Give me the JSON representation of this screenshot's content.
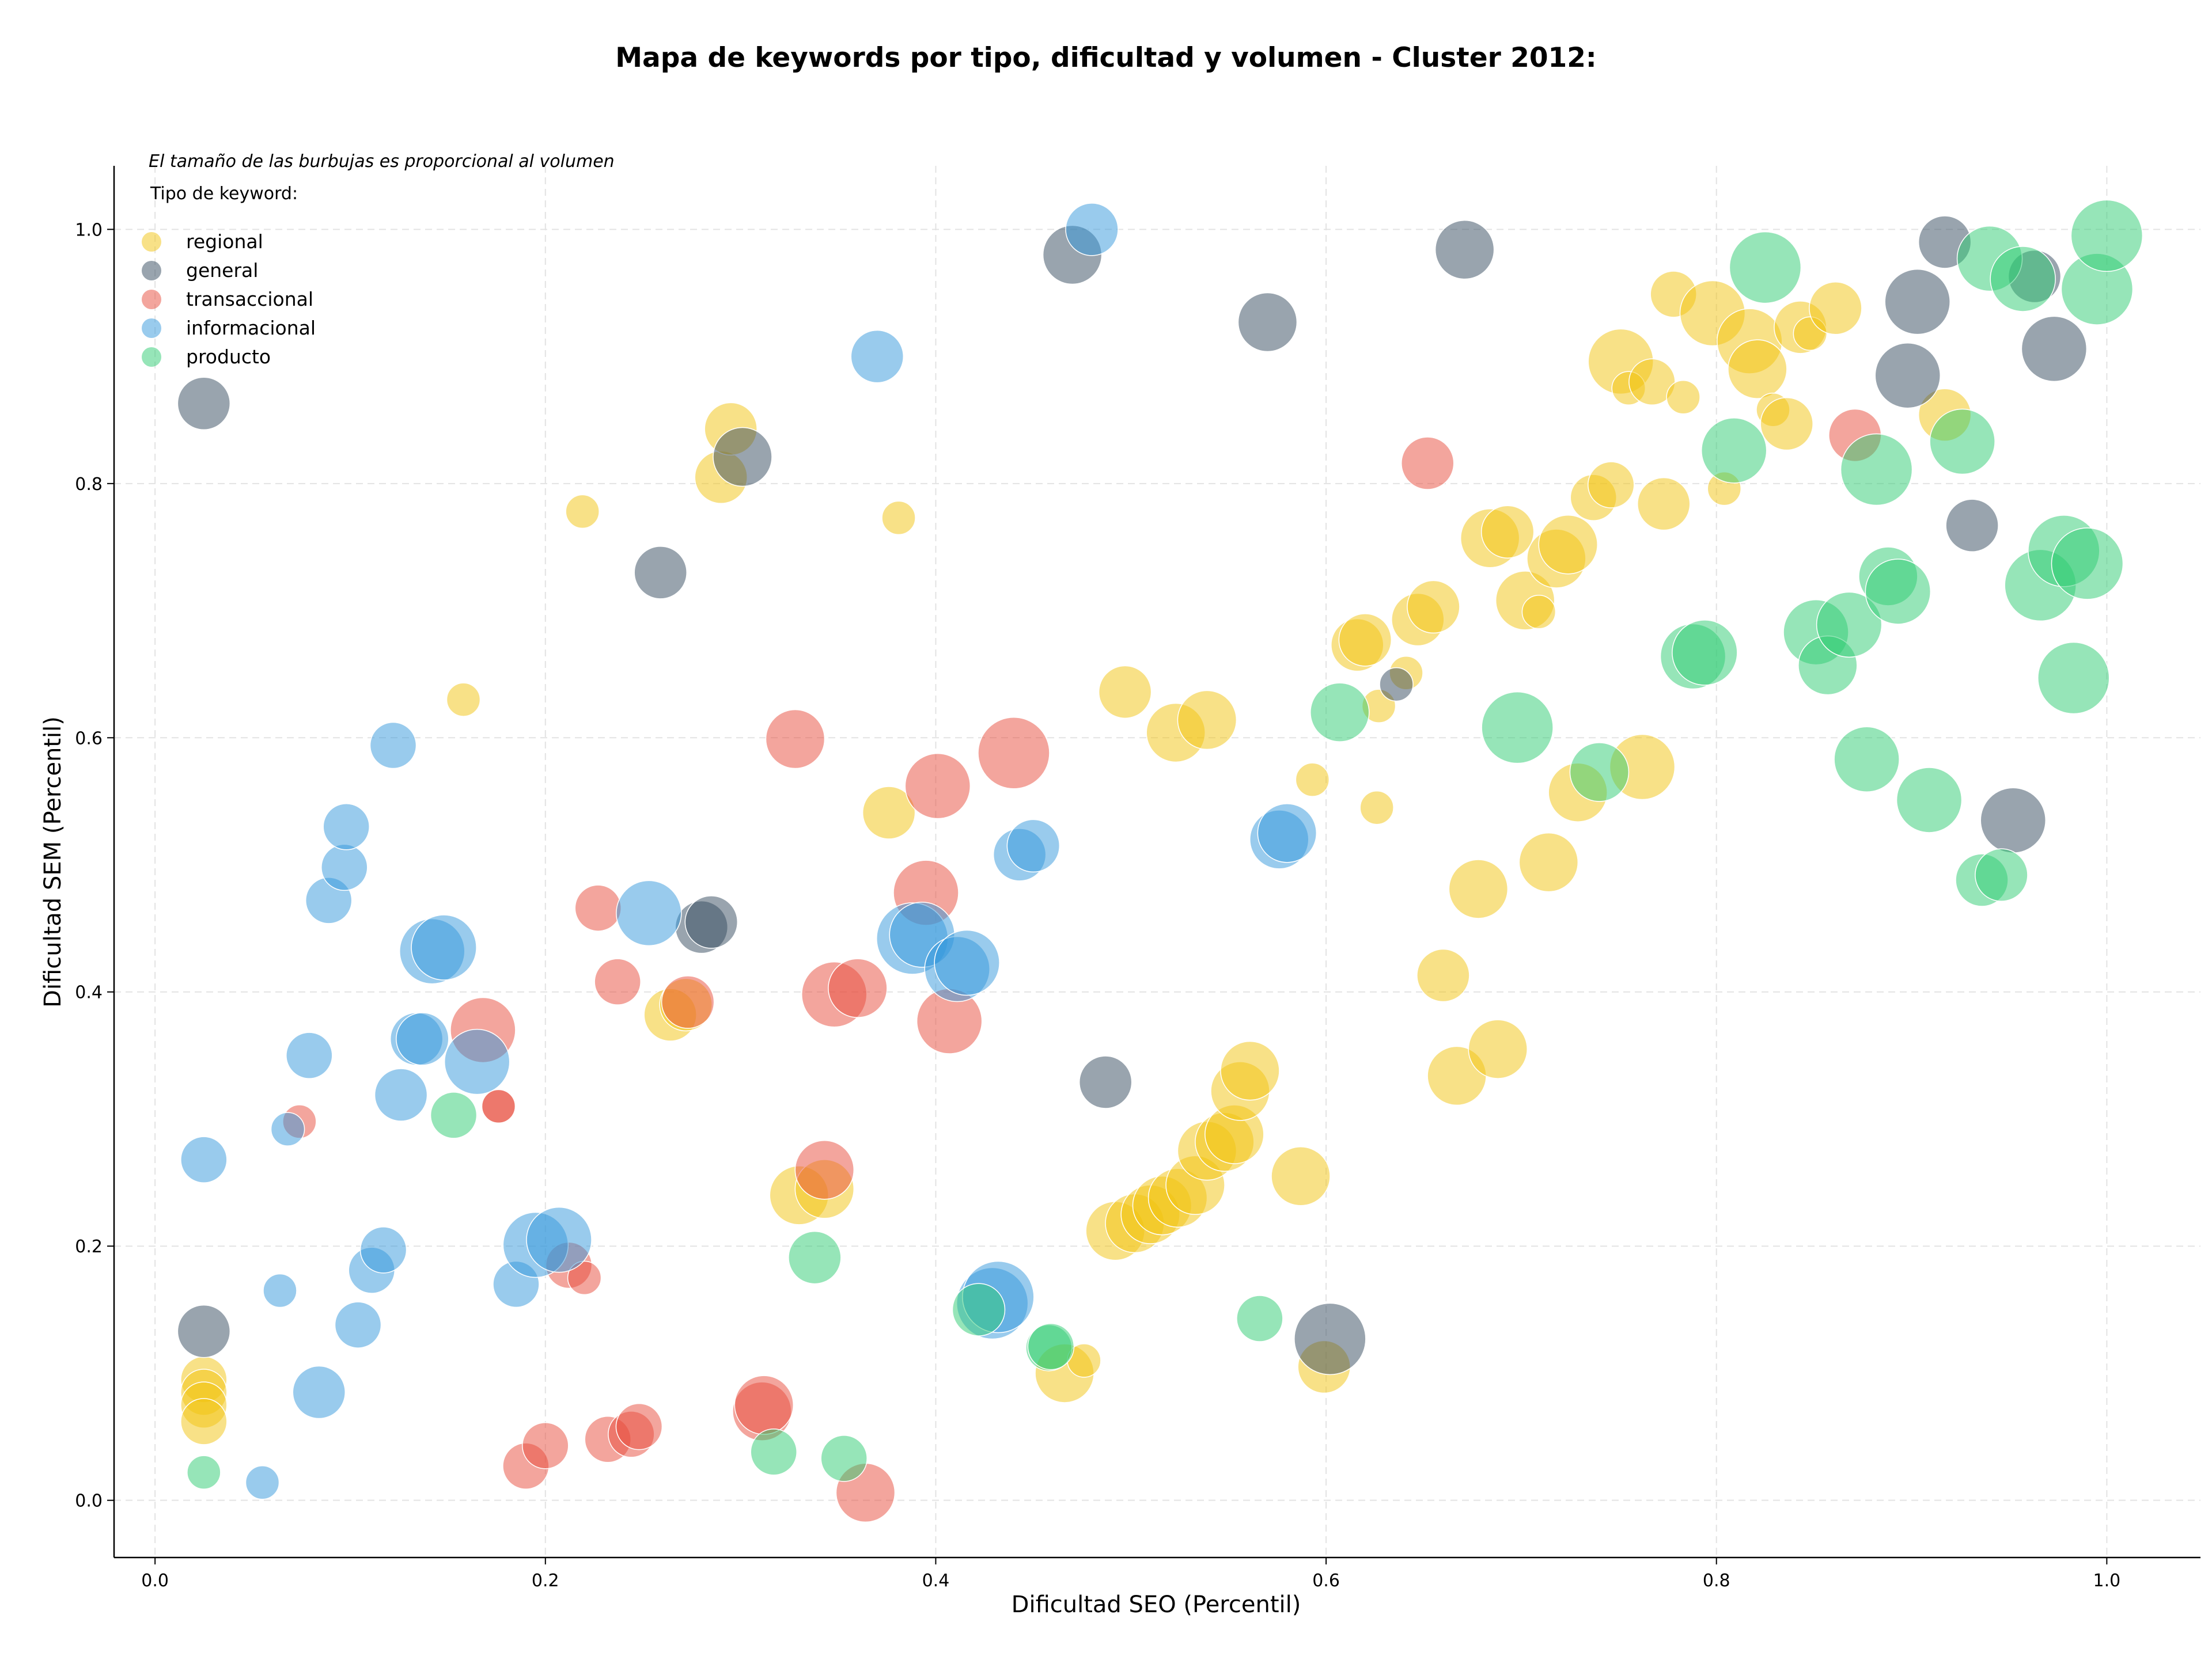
{
  "colors": {
    "regional": "#f1c40f",
    "general": "#34495e",
    "transaccional": "#e74c3c",
    "informacional": "#3498db",
    "producto": "#2ecc71"
  },
  "chart_data": {
    "type": "scatter",
    "title": "Mapa de keywords por tipo, dificultad y volumen - Cluster 2012:",
    "subtitle": "El tamaño de las burbujas es proporcional al volumen",
    "xlabel": "Dificultad SEO (Percentil)",
    "ylabel": "Dificultad SEM (Percentil)",
    "xlim": [
      -0.021,
      1.048
    ],
    "ylim": [
      -0.045,
      1.05
    ],
    "xticks": [
      "0.0",
      "0.2",
      "0.4",
      "0.6",
      "0.8",
      "1.0"
    ],
    "yticks": [
      "0.0",
      "0.2",
      "0.4",
      "0.6",
      "0.8",
      "1.0"
    ],
    "grid": true,
    "legend_title": "Tipo de keyword:",
    "legend_position": "top-left",
    "size_encoding": "volumen (relative 1-5)",
    "series": [
      {
        "name": "regional",
        "points": [
          [
            0.025,
            0.095,
            2
          ],
          [
            0.025,
            0.085,
            2
          ],
          [
            0.025,
            0.075,
            2
          ],
          [
            0.025,
            0.062,
            2
          ],
          [
            0.158,
            0.63,
            1
          ],
          [
            0.219,
            0.778,
            1
          ],
          [
            0.264,
            0.382,
            2.5
          ],
          [
            0.272,
            0.39,
            2.5
          ],
          [
            0.29,
            0.805,
            2.5
          ],
          [
            0.295,
            0.843,
            2.5
          ],
          [
            0.33,
            0.24,
            3
          ],
          [
            0.343,
            0.245,
            3
          ],
          [
            0.376,
            0.541,
            2.5
          ],
          [
            0.381,
            0.773,
            1
          ],
          [
            0.466,
            0.1,
            3
          ],
          [
            0.476,
            0.11,
            1
          ],
          [
            0.492,
            0.212,
            3
          ],
          [
            0.502,
            0.218,
            3
          ],
          [
            0.51,
            0.225,
            3
          ],
          [
            0.516,
            0.232,
            3
          ],
          [
            0.524,
            0.238,
            3
          ],
          [
            0.533,
            0.248,
            3
          ],
          [
            0.539,
            0.275,
            3
          ],
          [
            0.548,
            0.282,
            3
          ],
          [
            0.553,
            0.288,
            3
          ],
          [
            0.556,
            0.322,
            3
          ],
          [
            0.561,
            0.338,
            3
          ],
          [
            0.497,
            0.636,
            2.5
          ],
          [
            0.523,
            0.604,
            3
          ],
          [
            0.539,
            0.614,
            3
          ],
          [
            0.587,
            0.255,
            3
          ],
          [
            0.593,
            0.567,
            1
          ],
          [
            0.599,
            0.105,
            2.5
          ],
          [
            0.626,
            0.545,
            1
          ],
          [
            0.627,
            0.625,
            1
          ],
          [
            0.616,
            0.673,
            2.5
          ],
          [
            0.62,
            0.677,
            2.5
          ],
          [
            0.641,
            0.651,
            1
          ],
          [
            0.647,
            0.693,
            2.5
          ],
          [
            0.655,
            0.703,
            2.5
          ],
          [
            0.66,
            0.413,
            2.5
          ],
          [
            0.667,
            0.334,
            3
          ],
          [
            0.678,
            0.481,
            3
          ],
          [
            0.684,
            0.757,
            3
          ],
          [
            0.688,
            0.355,
            3
          ],
          [
            0.693,
            0.762,
            2.5
          ],
          [
            0.702,
            0.708,
            3
          ],
          [
            0.709,
            0.699,
            1
          ],
          [
            0.714,
            0.502,
            3
          ],
          [
            0.718,
            0.741,
            3
          ],
          [
            0.724,
            0.752,
            3
          ],
          [
            0.729,
            0.557,
            3
          ],
          [
            0.737,
            0.789,
            2
          ],
          [
            0.746,
            0.799,
            2
          ],
          [
            0.751,
            0.896,
            3.5
          ],
          [
            0.755,
            0.875,
            1
          ],
          [
            0.762,
            0.577,
            3.5
          ],
          [
            0.767,
            0.88,
            2
          ],
          [
            0.773,
            0.784,
            2.5
          ],
          [
            0.778,
            0.949,
            2
          ],
          [
            0.783,
            0.868,
            1
          ],
          [
            0.798,
            0.934,
            3.5
          ],
          [
            0.804,
            0.796,
            1
          ],
          [
            0.817,
            0.912,
            3.5
          ],
          [
            0.821,
            0.89,
            3
          ],
          [
            0.829,
            0.858,
            1
          ],
          [
            0.836,
            0.847,
            2.5
          ],
          [
            0.843,
            0.923,
            2.5
          ],
          [
            0.848,
            0.918,
            1
          ],
          [
            0.861,
            0.938,
            2.5
          ],
          [
            0.917,
            0.854,
            2.5
          ]
        ]
      },
      {
        "name": "general",
        "points": [
          [
            0.025,
            0.863,
            2.5
          ],
          [
            0.025,
            0.133,
            2.5
          ],
          [
            0.259,
            0.73,
            2.5
          ],
          [
            0.28,
            0.451,
            2.5
          ],
          [
            0.285,
            0.455,
            2.5
          ],
          [
            0.301,
            0.821,
            3
          ],
          [
            0.47,
            0.98,
            3
          ],
          [
            0.487,
            0.329,
            2.5
          ],
          [
            0.57,
            0.927,
            3
          ],
          [
            0.602,
            0.127,
            4
          ],
          [
            0.636,
            0.642,
            1
          ],
          [
            0.671,
            0.984,
            3
          ],
          [
            0.898,
            0.885,
            3.5
          ],
          [
            0.903,
            0.943,
            3.5
          ],
          [
            0.917,
            0.99,
            2.5
          ],
          [
            0.931,
            0.767,
            2.5
          ],
          [
            0.952,
            0.535,
            3.5
          ],
          [
            0.963,
            0.963,
            2.5
          ],
          [
            0.973,
            0.906,
            3.5
          ]
        ]
      },
      {
        "name": "transaccional",
        "points": [
          [
            0.074,
            0.298,
            1
          ],
          [
            0.168,
            0.37,
            3.5
          ],
          [
            0.176,
            0.31,
            1
          ],
          [
            0.176,
            0.31,
            1
          ],
          [
            0.19,
            0.027,
            2
          ],
          [
            0.2,
            0.043,
            2
          ],
          [
            0.212,
            0.185,
            2
          ],
          [
            0.22,
            0.175,
            1
          ],
          [
            0.227,
            0.466,
            2
          ],
          [
            0.237,
            0.408,
            2
          ],
          [
            0.232,
            0.048,
            2
          ],
          [
            0.244,
            0.052,
            2
          ],
          [
            0.248,
            0.058,
            2
          ],
          [
            0.273,
            0.392,
            2.5
          ],
          [
            0.311,
            0.07,
            3
          ],
          [
            0.312,
            0.075,
            3
          ],
          [
            0.328,
            0.599,
            3
          ],
          [
            0.343,
            0.26,
            3
          ],
          [
            0.348,
            0.398,
            3.5
          ],
          [
            0.36,
            0.403,
            3
          ],
          [
            0.364,
            0.006,
            3
          ],
          [
            0.395,
            0.478,
            3.5
          ],
          [
            0.401,
            0.562,
            3.5
          ],
          [
            0.407,
            0.377,
            3.5
          ],
          [
            0.44,
            0.588,
            4
          ],
          [
            0.652,
            0.816,
            2.5
          ],
          [
            0.871,
            0.838,
            2.5
          ]
        ]
      },
      {
        "name": "informacional",
        "points": [
          [
            0.025,
            0.268,
            2
          ],
          [
            0.055,
            0.014,
            1
          ],
          [
            0.064,
            0.165,
            1
          ],
          [
            0.068,
            0.292,
            1
          ],
          [
            0.079,
            0.35,
            2
          ],
          [
            0.084,
            0.085,
            2.5
          ],
          [
            0.089,
            0.472,
            2
          ],
          [
            0.097,
            0.498,
            2
          ],
          [
            0.098,
            0.53,
            2
          ],
          [
            0.104,
            0.138,
            2
          ],
          [
            0.111,
            0.181,
            2
          ],
          [
            0.117,
            0.197,
            2
          ],
          [
            0.122,
            0.594,
            2
          ],
          [
            0.126,
            0.319,
            2.5
          ],
          [
            0.134,
            0.363,
            2.5
          ],
          [
            0.137,
            0.363,
            2.5
          ],
          [
            0.142,
            0.432,
            3.5
          ],
          [
            0.148,
            0.435,
            3.5
          ],
          [
            0.165,
            0.345,
            3.5
          ],
          [
            0.185,
            0.17,
            2
          ],
          [
            0.195,
            0.201,
            3.5
          ],
          [
            0.207,
            0.205,
            3.5
          ],
          [
            0.253,
            0.462,
            3.5
          ],
          [
            0.37,
            0.9,
            2.5
          ],
          [
            0.388,
            0.442,
            4
          ],
          [
            0.393,
            0.445,
            3.5
          ],
          [
            0.411,
            0.418,
            3.5
          ],
          [
            0.416,
            0.423,
            3.5
          ],
          [
            0.429,
            0.155,
            4
          ],
          [
            0.432,
            0.16,
            4
          ],
          [
            0.443,
            0.508,
            2.5
          ],
          [
            0.45,
            0.515,
            2.5
          ],
          [
            0.48,
            1.0,
            2.5
          ],
          [
            0.576,
            0.52,
            3
          ],
          [
            0.58,
            0.525,
            3
          ]
        ]
      },
      {
        "name": "producto",
        "points": [
          [
            0.025,
            0.022,
            1
          ],
          [
            0.153,
            0.303,
            2
          ],
          [
            0.317,
            0.038,
            2
          ],
          [
            0.338,
            0.191,
            2.5
          ],
          [
            0.353,
            0.033,
            2
          ],
          [
            0.422,
            0.15,
            2.5
          ],
          [
            0.458,
            0.12,
            2
          ],
          [
            0.459,
            0.121,
            2
          ],
          [
            0.566,
            0.143,
            2
          ],
          [
            0.607,
            0.62,
            3
          ],
          [
            0.698,
            0.608,
            4
          ],
          [
            0.74,
            0.573,
            3
          ],
          [
            0.788,
            0.664,
            3.5
          ],
          [
            0.794,
            0.667,
            3.5
          ],
          [
            0.809,
            0.826,
            3.5
          ],
          [
            0.825,
            0.97,
            4
          ],
          [
            0.851,
            0.683,
            3.5
          ],
          [
            0.857,
            0.657,
            3
          ],
          [
            0.868,
            0.689,
            3.5
          ],
          [
            0.877,
            0.583,
            3.5
          ],
          [
            0.882,
            0.811,
            4
          ],
          [
            0.888,
            0.727,
            3
          ],
          [
            0.893,
            0.715,
            3.5
          ],
          [
            0.909,
            0.551,
            3.5
          ],
          [
            0.926,
            0.833,
            3.5
          ],
          [
            0.936,
            0.488,
            2.5
          ],
          [
            0.946,
            0.492,
            2.5
          ],
          [
            0.94,
            0.977,
            3.5
          ],
          [
            0.957,
            0.961,
            3.5
          ],
          [
            0.966,
            0.72,
            4
          ],
          [
            0.978,
            0.747,
            4
          ],
          [
            0.983,
            0.647,
            4
          ],
          [
            0.99,
            0.737,
            4
          ],
          [
            0.995,
            0.953,
            4
          ],
          [
            1.0,
            0.995,
            4
          ]
        ]
      }
    ]
  }
}
